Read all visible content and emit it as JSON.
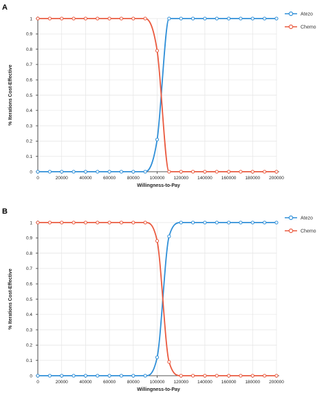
{
  "chart_data": [
    {
      "panel": "A",
      "type": "line",
      "xlabel": "Willingness-to-Pay",
      "ylabel": "% Iterations Cost-Effective",
      "xlim": [
        0,
        200000
      ],
      "ylim": [
        0,
        1
      ],
      "x_ticks": [
        0,
        20000,
        40000,
        60000,
        80000,
        100000,
        120000,
        140000,
        160000,
        180000,
        200000
      ],
      "y_ticks": [
        0,
        0.1,
        0.2,
        0.3,
        0.4,
        0.5,
        0.6,
        0.7,
        0.8,
        0.9,
        1
      ],
      "x_tick_labels": [
        "0",
        "20000",
        "40000",
        "60000",
        "80000",
        "100000",
        "120000",
        "140000",
        "160000",
        "180000",
        "200000"
      ],
      "y_tick_labels": [
        "0",
        "0.1",
        "0.2",
        "0.3",
        "0.4",
        "0.5",
        "0.6",
        "0.7",
        "0.8",
        "0.9",
        "1"
      ],
      "grid": true,
      "legend_position": "top-right",
      "x": [
        0,
        10000,
        20000,
        30000,
        40000,
        50000,
        60000,
        70000,
        80000,
        90000,
        100000,
        110000,
        120000,
        130000,
        140000,
        150000,
        160000,
        170000,
        180000,
        190000,
        200000
      ],
      "series": [
        {
          "name": "Atezo",
          "color": "#2f8fd8",
          "values": [
            0,
            0,
            0,
            0,
            0,
            0,
            0,
            0,
            0,
            0,
            0.21,
            1,
            1,
            1,
            1,
            1,
            1,
            1,
            1,
            1,
            1
          ]
        },
        {
          "name": "Chemo",
          "color": "#ea5a3f",
          "values": [
            1,
            1,
            1,
            1,
            1,
            1,
            1,
            1,
            1,
            1,
            0.79,
            0,
            0,
            0,
            0,
            0,
            0,
            0,
            0,
            0,
            0
          ]
        }
      ]
    },
    {
      "panel": "B",
      "type": "line",
      "xlabel": "Willingness-to-Pay",
      "ylabel": "% Iterations Cost-Effective",
      "xlim": [
        0,
        200000
      ],
      "ylim": [
        0,
        1
      ],
      "x_ticks": [
        0,
        20000,
        40000,
        60000,
        80000,
        100000,
        120000,
        140000,
        160000,
        180000,
        200000
      ],
      "y_ticks": [
        0,
        0.1,
        0.2,
        0.3,
        0.4,
        0.5,
        0.6,
        0.7,
        0.8,
        0.9,
        1
      ],
      "x_tick_labels": [
        "0",
        "20000",
        "40000",
        "60000",
        "80000",
        "100000",
        "120000",
        "140000",
        "160000",
        "180000",
        "200000"
      ],
      "y_tick_labels": [
        "0",
        "0.1",
        "0.2",
        "0.3",
        "0.4",
        "0.5",
        "0.6",
        "0.7",
        "0.8",
        "0.9",
        "1"
      ],
      "grid": true,
      "legend_position": "top-right",
      "x": [
        0,
        10000,
        20000,
        30000,
        40000,
        50000,
        60000,
        70000,
        80000,
        90000,
        100000,
        110000,
        120000,
        130000,
        140000,
        150000,
        160000,
        170000,
        180000,
        190000,
        200000
      ],
      "series": [
        {
          "name": "Atezo",
          "color": "#2f8fd8",
          "values": [
            0,
            0,
            0,
            0,
            0,
            0,
            0,
            0,
            0,
            0,
            0.12,
            0.91,
            1,
            1,
            1,
            1,
            1,
            1,
            1,
            1,
            1
          ]
        },
        {
          "name": "Chemo",
          "color": "#ea5a3f",
          "values": [
            1,
            1,
            1,
            1,
            1,
            1,
            1,
            1,
            1,
            1,
            0.88,
            0.09,
            0,
            0,
            0,
            0,
            0,
            0,
            0,
            0,
            0
          ]
        }
      ]
    }
  ]
}
